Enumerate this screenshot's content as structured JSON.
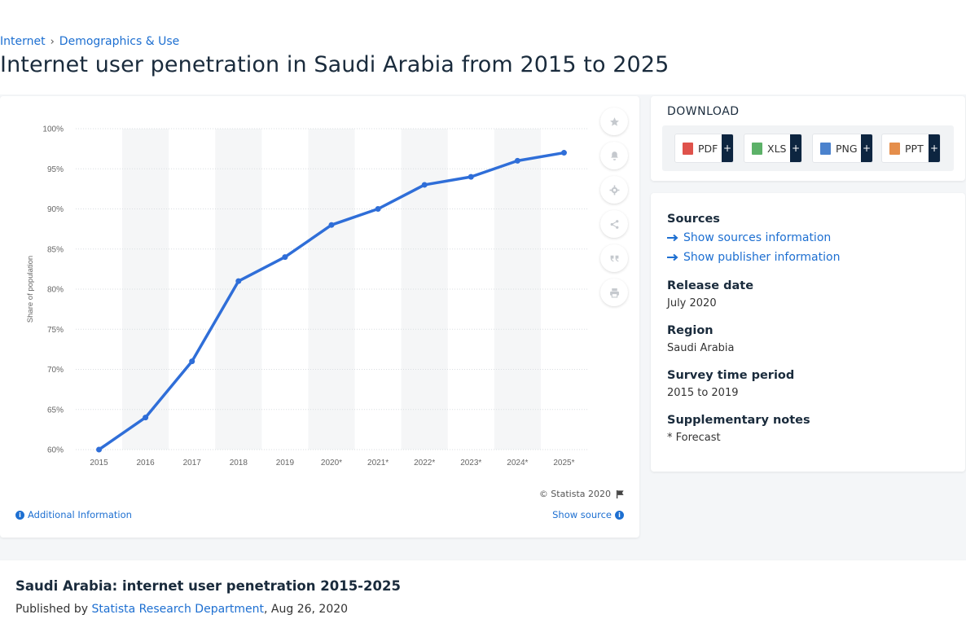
{
  "breadcrumb": {
    "items": [
      "Internet",
      "Demographics & Use"
    ],
    "separator": "›"
  },
  "page_title": "Internet user penetration in Saudi Arabia from 2015 to 2025",
  "chart_data": {
    "type": "line",
    "title": "",
    "xlabel": "",
    "ylabel": "Share of population",
    "categories": [
      "2015",
      "2016",
      "2017",
      "2018",
      "2019",
      "2020*",
      "2021*",
      "2022*",
      "2023*",
      "2024*",
      "2025*"
    ],
    "values": [
      60,
      64,
      71,
      81,
      84,
      88,
      90,
      93,
      94,
      96,
      97
    ],
    "ylim": [
      60,
      100
    ],
    "yticks": [
      60,
      65,
      70,
      75,
      80,
      85,
      90,
      95,
      100
    ],
    "ytick_suffix": "%",
    "grid": true,
    "line_color": "#2f6ed8",
    "alt_band_color": "#f5f6f7"
  },
  "chart_footer": {
    "copyright": "© Statista 2020",
    "additional_info": "Additional Information",
    "show_source": "Show source"
  },
  "tools": {
    "icons": [
      "star-icon",
      "bell-icon",
      "gear-icon",
      "share-icon",
      "quote-icon",
      "print-icon"
    ]
  },
  "download": {
    "title": "DOWNLOAD",
    "buttons": [
      {
        "label": "PDF",
        "color": "#d9342b"
      },
      {
        "label": "XLS",
        "color": "#3fa34d"
      },
      {
        "label": "PNG",
        "color": "#2b6cc4"
      },
      {
        "label": "PPT",
        "color": "#e07a2b"
      }
    ],
    "plus": "+"
  },
  "meta": {
    "sources_heading": "Sources",
    "show_sources": "Show sources information",
    "show_publisher": "Show publisher information",
    "release_heading": "Release date",
    "release_value": "July 2020",
    "region_heading": "Region",
    "region_value": "Saudi Arabia",
    "survey_heading": "Survey time period",
    "survey_value": "2015 to 2019",
    "notes_heading": "Supplementary notes",
    "notes_value": "* Forecast"
  },
  "bottom": {
    "title": "Saudi Arabia: internet user penetration 2015-2025",
    "published_by_label": "Published by",
    "publisher": "Statista Research Department",
    "date": ", Aug 26, 2020"
  },
  "colors": {
    "link": "#1d6fd1",
    "dark_navy": "#0d2540"
  }
}
